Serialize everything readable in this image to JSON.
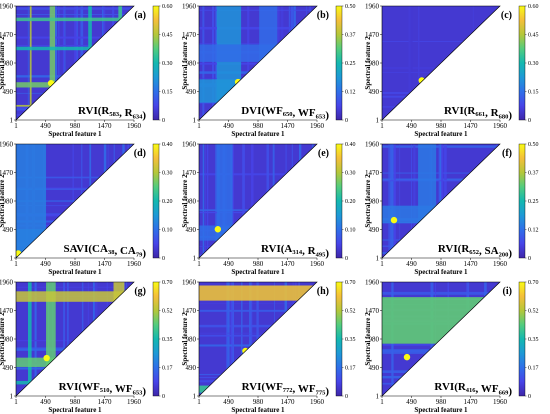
{
  "colors": {
    "colormap": [
      "#3e26a8",
      "#4744e8",
      "#2f6fe8",
      "#1e99d6",
      "#14b8b0",
      "#53cc7e",
      "#b5c73a",
      "#f4bf3a",
      "#f9fb15"
    ],
    "background": "#ffffff"
  },
  "chart_data": [
    {
      "panel": "(a)",
      "type": "heatmap",
      "index_name": "RVI",
      "feature1": "R",
      "feature1_sub": "583",
      "feature2": "R",
      "feature2_sub": "634",
      "xlabel": "Spectral feature 1",
      "ylabel": "Spectral feature 2",
      "x_ticks": [
        "1",
        "490",
        "980",
        "1470",
        "1960"
      ],
      "y_ticks": [
        "1",
        "490",
        "980",
        "1470",
        "1960"
      ],
      "colorbar_ticks": [
        "0",
        "0.15",
        "0.30",
        "0.45",
        "0.60"
      ],
      "colorbar_range": [
        0,
        0.6
      ],
      "triangle": "lower-left",
      "best_pair": [
        583,
        634
      ],
      "best_value": 0.6,
      "pattern": "grid",
      "bands": [
        [
          230,
          260,
          0.45
        ],
        [
          560,
          650,
          0.4
        ],
        [
          1200,
          1260,
          0.3
        ],
        [
          1700,
          1760,
          0.35
        ]
      ]
    },
    {
      "panel": "(b)",
      "type": "heatmap",
      "index_name": "DVI",
      "feature1": "WF",
      "feature1_sub": "650",
      "feature2": "WF",
      "feature2_sub": "653",
      "xlabel": "Spectral feature 1",
      "ylabel": "Spectral feature 2",
      "x_ticks": [
        "1",
        "490",
        "980",
        "1470",
        "1960"
      ],
      "y_ticks": [
        "1",
        "490",
        "980",
        "1470",
        "1960"
      ],
      "colorbar_ticks": [
        "0",
        "0.12",
        "0.25",
        "0.37",
        "0.50"
      ],
      "colorbar_range": [
        0,
        0.5
      ],
      "triangle": "lower-left",
      "best_pair": [
        650,
        653
      ],
      "best_value": 0.5,
      "pattern": "blocks",
      "bands": [
        [
          300,
          700,
          0.18
        ],
        [
          1000,
          1300,
          0.12
        ]
      ]
    },
    {
      "panel": "(c)",
      "type": "heatmap",
      "index_name": "RVI",
      "feature1": "R",
      "feature1_sub": "661",
      "feature2": "R",
      "feature2_sub": "680",
      "xlabel": "Spectral feature 1",
      "ylabel": "Spectral feature 2",
      "x_ticks": [
        "1",
        "490",
        "980",
        "1470",
        "1960"
      ],
      "y_ticks": [
        "1",
        "490",
        "980",
        "1470",
        "1960"
      ],
      "colorbar_ticks": [
        "0",
        "0.15",
        "0.30",
        "0.45",
        "0.60"
      ],
      "colorbar_range": [
        0,
        0.6
      ],
      "triangle": "lower-left",
      "best_pair": [
        661,
        680
      ],
      "best_value": 0.6,
      "pattern": "uniform",
      "bands": []
    },
    {
      "panel": "(d)",
      "type": "heatmap",
      "index_name": "SAVI",
      "feature1": "CA",
      "feature1_sub": "38",
      "feature2": "CA",
      "feature2_sub": "79",
      "xlabel": "Spectral feature 1",
      "ylabel": "Spectral feature 2",
      "x_ticks": [
        "1",
        "490",
        "980",
        "1470",
        "1960"
      ],
      "y_ticks": [
        "1",
        "490",
        "980",
        "1470",
        "1960"
      ],
      "colorbar_ticks": [
        "0",
        "0.10",
        "0.20",
        "0.30",
        "0.40"
      ],
      "colorbar_range": [
        0,
        0.4
      ],
      "triangle": "lower-left",
      "best_pair": [
        38,
        79
      ],
      "best_value": 0.4,
      "pattern": "stripes",
      "bands": [
        [
          0,
          500,
          0.12
        ]
      ]
    },
    {
      "panel": "(e)",
      "type": "heatmap",
      "index_name": "RVI",
      "feature1": "A",
      "feature1_sub": "314",
      "feature2": "R",
      "feature2_sub": "495",
      "xlabel": "Spectral feature 1",
      "ylabel": "Spectral feature 2",
      "x_ticks": [
        "1",
        "490",
        "980",
        "1470",
        "1960"
      ],
      "y_ticks": [
        "1",
        "490",
        "980",
        "1470",
        "1960"
      ],
      "colorbar_ticks": [
        "0",
        "0.10",
        "0.20",
        "0.30",
        "0.40"
      ],
      "colorbar_range": [
        0,
        0.4
      ],
      "triangle": "lower-left",
      "best_pair": [
        314,
        495
      ],
      "best_value": 0.4,
      "pattern": "stripes",
      "bands": [
        [
          300,
          560,
          0.1
        ]
      ]
    },
    {
      "panel": "(f)",
      "type": "heatmap",
      "index_name": "RVI",
      "feature1": "R",
      "feature1_sub": "652",
      "feature2": "SA",
      "feature2_sub": "200",
      "xlabel": "Spectral feature 1",
      "ylabel": "Spectral feature 2",
      "x_ticks": [
        "1",
        "490",
        "980",
        "1470",
        "1960"
      ],
      "y_ticks": [
        "1",
        "490",
        "980",
        "1470",
        "1960"
      ],
      "colorbar_ticks": [
        "0",
        "0.12",
        "0.25",
        "0.37",
        "0.50"
      ],
      "colorbar_range": [
        0,
        0.5
      ],
      "triangle": "lower-left",
      "best_pair": [
        652,
        200
      ],
      "best_value": 0.5,
      "pattern": "stripes",
      "bands": [
        [
          600,
          900,
          0.14
        ]
      ]
    },
    {
      "panel": "(g)",
      "type": "heatmap",
      "index_name": "RVI",
      "feature1": "WF",
      "feature1_sub": "510",
      "feature2": "WF",
      "feature2_sub": "653",
      "xlabel": "Spectral feature 1",
      "ylabel": "Spectral feature 2",
      "x_ticks": [
        "1",
        "490",
        "980",
        "1470",
        "1960"
      ],
      "y_ticks": [
        "1",
        "490",
        "980",
        "1470",
        "1960"
      ],
      "colorbar_ticks": [
        "0",
        "0.17",
        "0.35",
        "0.52",
        "0.70"
      ],
      "colorbar_range": [
        0,
        0.7
      ],
      "triangle": "lower-left",
      "best_pair": [
        510,
        653
      ],
      "best_value": 0.7,
      "pattern": "grid",
      "bands": [
        [
          200,
          260,
          0.35
        ],
        [
          500,
          660,
          0.45
        ],
        [
          1620,
          1800,
          0.55
        ]
      ]
    },
    {
      "panel": "(h)",
      "type": "heatmap",
      "index_name": "RVI",
      "feature1": "WF",
      "feature1_sub": "772",
      "feature2": "WF",
      "feature2_sub": "775",
      "xlabel": "Spectral feature 1",
      "ylabel": "Spectral feature 2",
      "x_ticks": [
        "1",
        "490",
        "980",
        "1470",
        "1960"
      ],
      "y_ticks": [
        "1",
        "490",
        "980",
        "1470",
        "1960"
      ],
      "colorbar_ticks": [
        "0",
        "0.17",
        "0.35",
        "0.52",
        "0.70"
      ],
      "colorbar_range": [
        0,
        0.7
      ],
      "triangle": "lower-left",
      "best_pair": [
        772,
        775
      ],
      "best_value": 0.7,
      "pattern": "hot-rows",
      "bands": [
        [
          1640,
          1900,
          0.6
        ],
        [
          60,
          180,
          0.4
        ]
      ]
    },
    {
      "panel": "(i)",
      "type": "heatmap",
      "index_name": "RVI",
      "feature1": "R",
      "feature1_sub": "416",
      "feature2": "WF",
      "feature2_sub": "669",
      "xlabel": "Spectral feature 1",
      "ylabel": "Spectral feature 2",
      "x_ticks": [
        "1",
        "490",
        "980",
        "1470",
        "1960"
      ],
      "y_ticks": [
        "1",
        "490",
        "980",
        "1470",
        "1960"
      ],
      "colorbar_ticks": [
        "0",
        "0.17",
        "0.35",
        "0.52",
        "0.70"
      ],
      "colorbar_range": [
        0,
        0.7
      ],
      "triangle": "lower-left",
      "best_pair": [
        416,
        669
      ],
      "best_value": 0.7,
      "pattern": "mid-rows",
      "bands": [
        [
          900,
          1700,
          0.45
        ]
      ]
    }
  ]
}
